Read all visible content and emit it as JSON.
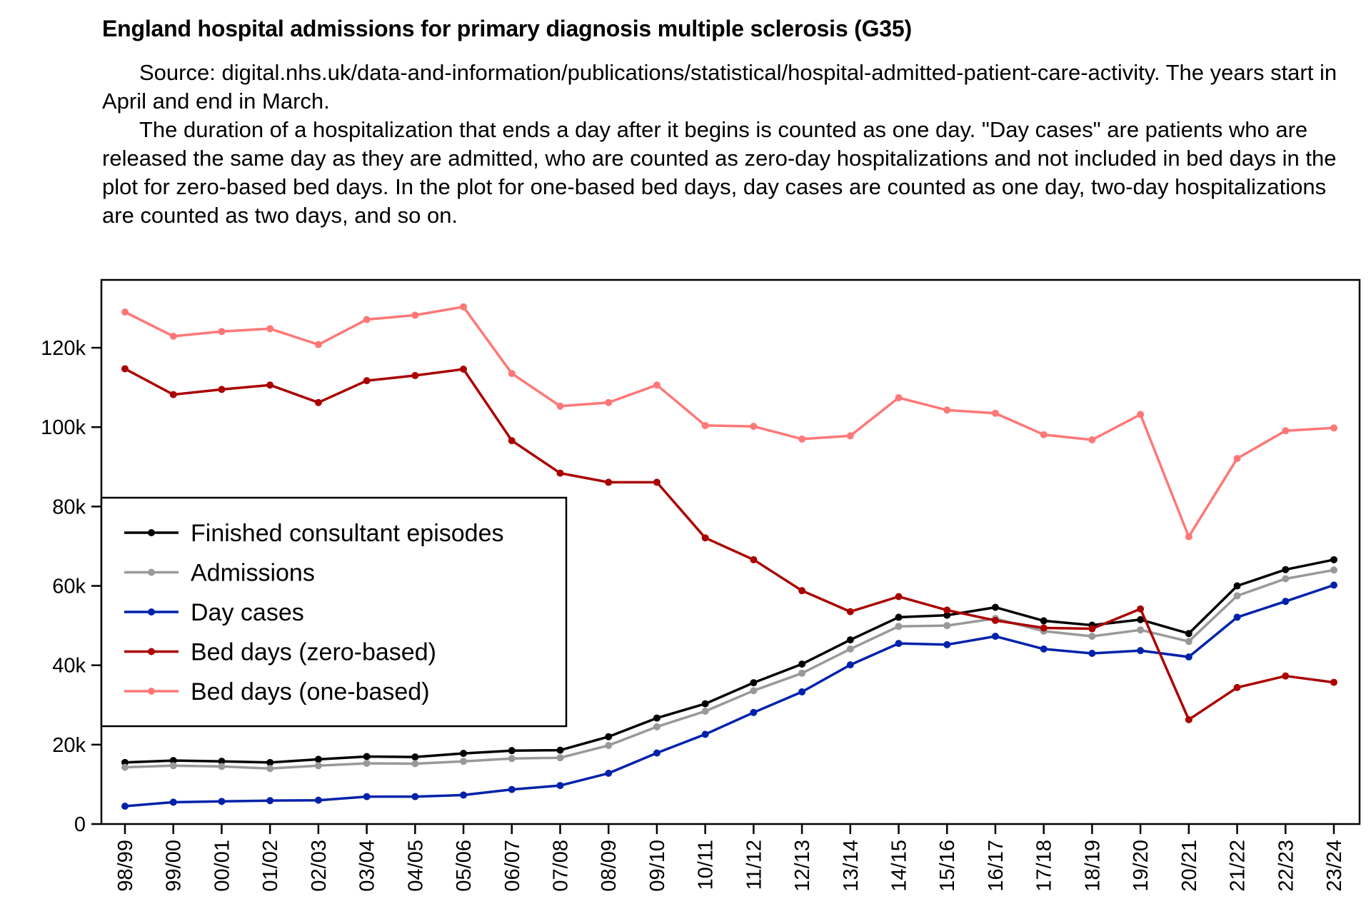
{
  "header": {
    "title": "England hospital admissions for primary diagnosis multiple sclerosis (G35)",
    "paragraphs": [
      "Source: digital.nhs.uk/data-and-information/publications/statistical/hospital-admitted-patient-care-activity. The years start in April and end in March.",
      "The duration of a hospitalization that ends a day after it begins is counted as one day. \"Day cases\" are patients who are released the same day as they are admitted, who are counted as zero-day hospitalizations and not included in bed days in the plot for zero-based bed days. In the plot for one-based bed days, day cases are counted as one day, two-day hospitalizations are counted as two days, and so on."
    ]
  },
  "chart_data": {
    "type": "line",
    "title": "England hospital admissions for primary diagnosis multiple sclerosis (G35)",
    "xlabel": "",
    "ylabel": "",
    "ylim": [
      0,
      137000
    ],
    "grid": false,
    "legend_position": "left",
    "y_ticks": [
      0,
      20000,
      40000,
      60000,
      80000,
      100000,
      120000
    ],
    "y_tick_labels": [
      "0",
      "20k",
      "40k",
      "60k",
      "80k",
      "100k",
      "120k"
    ],
    "categories": [
      "98/99",
      "99/00",
      "00/01",
      "01/02",
      "02/03",
      "03/04",
      "04/05",
      "05/06",
      "06/07",
      "07/08",
      "08/09",
      "09/10",
      "10/11",
      "11/12",
      "12/13",
      "13/14",
      "14/15",
      "15/16",
      "16/17",
      "17/18",
      "18/19",
      "19/20",
      "20/21",
      "21/22",
      "22/23",
      "23/24"
    ],
    "series": [
      {
        "name": "Finished consultant episodes",
        "color": "#000000",
        "values": [
          15500,
          16000,
          15800,
          15500,
          16300,
          17000,
          16900,
          17800,
          18500,
          18600,
          22000,
          26700,
          30300,
          35600,
          40300,
          46400,
          52100,
          52600,
          54600,
          51200,
          50100,
          51500,
          48000,
          60000,
          64100,
          66600
        ]
      },
      {
        "name": "Admissions",
        "color": "#999999",
        "values": [
          14300,
          14700,
          14500,
          14000,
          14700,
          15300,
          15200,
          15800,
          16500,
          16700,
          19800,
          24500,
          28400,
          33600,
          38000,
          44100,
          49800,
          50000,
          51800,
          48600,
          47300,
          48900,
          46000,
          57500,
          61800,
          64000
        ]
      },
      {
        "name": "Day cases",
        "color": "#0022aa",
        "values": [
          4500,
          5500,
          5700,
          5900,
          6000,
          6900,
          6900,
          7300,
          8700,
          9700,
          12800,
          17900,
          22600,
          28100,
          33300,
          40100,
          45500,
          45200,
          47300,
          44100,
          43000,
          43700,
          42100,
          52100,
          56100,
          60200
        ]
      },
      {
        "name": "Bed days (zero-based)",
        "color": "#aa0000",
        "values": [
          114700,
          108200,
          109500,
          110600,
          106200,
          111700,
          113000,
          114600,
          96600,
          88400,
          86100,
          86100,
          72100,
          66600,
          58800,
          53500,
          57300,
          53900,
          51300,
          49400,
          49200,
          54200,
          26300,
          34400,
          37300,
          35700
        ]
      },
      {
        "name": "Bed days (one-based)",
        "color": "#ff7777",
        "values": [
          129000,
          122900,
          124100,
          124800,
          120800,
          127100,
          128200,
          130300,
          113500,
          105300,
          106200,
          110600,
          100400,
          100200,
          97000,
          97800,
          107400,
          104300,
          103500,
          98100,
          96800,
          103200,
          72400,
          92100,
          99100,
          99800
        ]
      }
    ]
  }
}
